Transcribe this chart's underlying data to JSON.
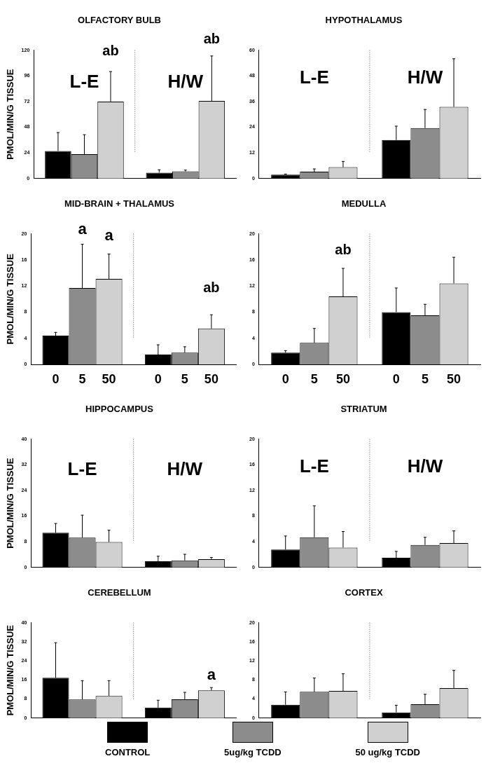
{
  "chart_data": [
    {
      "type": "bar",
      "title": "OLFACTORY BULB",
      "ylabel": "PMOL/MIN/G TISSUE",
      "categories": [
        null,
        null
      ],
      "ylim": [
        0,
        120
      ],
      "yticks": [
        0,
        24,
        48,
        72,
        96,
        120
      ],
      "annotations": [
        "L-E",
        "H/W",
        "ab",
        "ab"
      ],
      "series": [
        {
          "color": "#000000",
          "values": [
            25.8,
            5.5
          ],
          "errors": [
            [
              25.8,
              43
            ],
            [
              5.5,
              8.2
            ]
          ]
        },
        {
          "color": "#8c8c8c",
          "values": [
            22.8,
            6.7
          ],
          "errors": [
            [
              22.8,
              41
            ],
            [
              6.7,
              7.9
            ]
          ]
        },
        {
          "color": "#d0d0d0",
          "values": [
            72,
            72.6
          ],
          "errors": [
            [
              72,
              100
            ],
            [
              72.6,
              114.6
            ]
          ]
        }
      ]
    },
    {
      "type": "bar",
      "title": "HYPOTHALAMUS",
      "categories": [
        null,
        null
      ],
      "ylim": [
        0,
        60
      ],
      "yticks": [
        0,
        12,
        24,
        36,
        48,
        60
      ],
      "annotations": [
        "L-E",
        "H/W"
      ],
      "series": [
        {
          "color": "#000000",
          "values": [
            1.8,
            18
          ],
          "errors": [
            [
              1.8,
              2.1
            ],
            [
              18,
              24.5
            ]
          ]
        },
        {
          "color": "#8c8c8c",
          "values": [
            3.2,
            23.6
          ],
          "errors": [
            [
              3.2,
              4.5
            ],
            [
              23.6,
              32.3
            ]
          ]
        },
        {
          "color": "#d0d0d0",
          "values": [
            5.3,
            33.5
          ],
          "errors": [
            [
              5.3,
              8
            ],
            [
              33.5,
              56
            ]
          ]
        }
      ]
    },
    {
      "type": "bar",
      "title": "MID-BRAIN + THALAMUS",
      "ylabel": "PMOL/MIN/G TISSUE",
      "categories": [
        null,
        null
      ],
      "ylim": [
        0,
        20
      ],
      "yticks": [
        0,
        4,
        8,
        12,
        16,
        20
      ],
      "annotations": [
        "a",
        "a",
        "ab",
        "0",
        "5",
        "50",
        "0",
        "5",
        "50"
      ],
      "series": [
        {
          "color": "#000000",
          "values": [
            4.4,
            1.5
          ],
          "errors": [
            [
              4.4,
              4.9
            ],
            [
              1.5,
              3
            ]
          ]
        },
        {
          "color": "#8c8c8c",
          "values": [
            11.7,
            1.8
          ],
          "errors": [
            [
              11.7,
              18.4
            ],
            [
              1.8,
              2.7
            ]
          ]
        },
        {
          "color": "#d0d0d0",
          "values": [
            13.1,
            5.5
          ],
          "errors": [
            [
              13.1,
              16.9
            ],
            [
              5.5,
              7.6
            ]
          ]
        }
      ]
    },
    {
      "type": "bar",
      "title": "MEDULLA",
      "categories": [
        null,
        null
      ],
      "ylim": [
        0,
        20
      ],
      "yticks": [
        0,
        4,
        8,
        12,
        16,
        20
      ],
      "annotations": [
        "ab",
        "0",
        "5",
        "50",
        "0",
        "5",
        "50"
      ],
      "series": [
        {
          "color": "#000000",
          "values": [
            1.8,
            8
          ],
          "errors": [
            [
              1.8,
              2.1
            ],
            [
              8,
              11.7
            ]
          ]
        },
        {
          "color": "#8c8c8c",
          "values": [
            3.3,
            7.5
          ],
          "errors": [
            [
              3.3,
              5.5
            ],
            [
              7.5,
              9.2
            ]
          ]
        },
        {
          "color": "#d0d0d0",
          "values": [
            10.4,
            12.4
          ],
          "errors": [
            [
              10.4,
              14.7
            ],
            [
              12.4,
              16.4
            ]
          ]
        }
      ]
    },
    {
      "type": "bar",
      "title": "HIPPOCAMPUS",
      "ylabel": "PMOL/MIN/G TISSUE",
      "categories": [
        null,
        null
      ],
      "ylim": [
        0,
        40
      ],
      "yticks": [
        0,
        8,
        16,
        24,
        32,
        40
      ],
      "annotations": [
        "L-E",
        "H/W"
      ],
      "series": [
        {
          "color": "#000000",
          "values": [
            10.8,
            1.9
          ],
          "errors": [
            [
              10.8,
              13.7
            ],
            [
              1.9,
              3.5
            ]
          ]
        },
        {
          "color": "#8c8c8c",
          "values": [
            9.3,
            2.2
          ],
          "errors": [
            [
              9.3,
              16.3
            ],
            [
              2.2,
              4.1
            ]
          ]
        },
        {
          "color": "#d0d0d0",
          "values": [
            7.9,
            2.6
          ],
          "errors": [
            [
              7.9,
              11.6
            ],
            [
              2.6,
              3.1
            ]
          ]
        }
      ]
    },
    {
      "type": "bar",
      "title": "STRIATUM",
      "categories": [
        null,
        null
      ],
      "ylim": [
        0,
        20
      ],
      "yticks": [
        0,
        4,
        8,
        12,
        16,
        20
      ],
      "annotations": [
        "L-E",
        "H/W"
      ],
      "series": [
        {
          "color": "#000000",
          "values": [
            2.8,
            1.5
          ],
          "errors": [
            [
              2.8,
              4.9
            ],
            [
              1.5,
              2.5
            ]
          ]
        },
        {
          "color": "#8c8c8c",
          "values": [
            4.7,
            3.5
          ],
          "errors": [
            [
              4.7,
              9.6
            ],
            [
              3.5,
              4.7
            ]
          ]
        },
        {
          "color": "#d0d0d0",
          "values": [
            3.1,
            3.8
          ],
          "errors": [
            [
              3.1,
              5.6
            ],
            [
              3.8,
              5.7
            ]
          ]
        }
      ]
    },
    {
      "type": "bar",
      "title": "CEREBELLUM",
      "ylabel": "PMOL/MIN/G TISSUE",
      "categories": [
        null,
        null
      ],
      "ylim": [
        0,
        40
      ],
      "yticks": [
        0,
        8,
        16,
        24,
        32,
        40
      ],
      "annotations": [
        "a"
      ],
      "series": [
        {
          "color": "#000000",
          "values": [
            16.9,
            4.4
          ],
          "errors": [
            [
              16.9,
              31.6
            ],
            [
              4.4,
              7.5
            ]
          ]
        },
        {
          "color": "#8c8c8c",
          "values": [
            7.8,
            7.9
          ],
          "errors": [
            [
              7.8,
              15.7
            ],
            [
              7.9,
              10.8
            ]
          ]
        },
        {
          "color": "#d0d0d0",
          "values": [
            9.3,
            11.6
          ],
          "errors": [
            [
              9.3,
              15.7
            ],
            [
              11.6,
              12.8
            ]
          ]
        }
      ]
    },
    {
      "type": "bar",
      "title": "CORTEX",
      "categories": [
        null,
        null
      ],
      "ylim": [
        0,
        20
      ],
      "yticks": [
        0,
        4,
        8,
        12,
        16,
        20
      ],
      "legend": "bottom",
      "series": [
        {
          "name": "CONTROL",
          "color": "#000000",
          "values": [
            2.8,
            1.2
          ],
          "errors": [
            [
              2.8,
              5.5
            ],
            [
              1.2,
              2.7
            ]
          ]
        },
        {
          "name": "5ug/kg  TCDD",
          "color": "#8c8c8c",
          "values": [
            5.5,
            2.9
          ],
          "errors": [
            [
              5.5,
              8.4
            ],
            [
              2.9,
              5
            ]
          ]
        },
        {
          "name": "50  ug/kg  TCDD",
          "color": "#d0d0d0",
          "values": [
            5.7,
            6.3
          ],
          "errors": [
            [
              5.7,
              9.3
            ],
            [
              6.3,
              10
            ]
          ]
        }
      ]
    }
  ]
}
